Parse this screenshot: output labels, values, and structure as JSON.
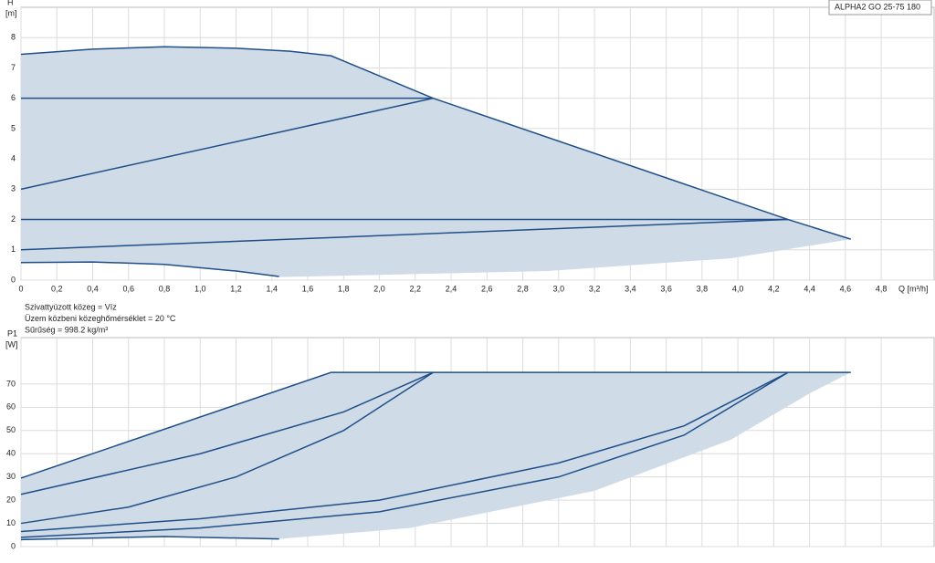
{
  "chart_data": [
    {
      "type": "line",
      "title": "ALPHA2 GO 25-75 180",
      "y_label": [
        "H",
        "[m]"
      ],
      "x_label": "Q [m³/h]",
      "xlim": [
        0,
        5.1
      ],
      "ylim": [
        0,
        9
      ],
      "xticks": [
        0,
        {
          "value": 0.2,
          "label": "0,2"
        },
        {
          "value": 0.4,
          "label": "0,4"
        },
        {
          "value": 0.6,
          "label": "0,6"
        },
        {
          "value": 0.8,
          "label": "0,8"
        },
        {
          "value": 1.0,
          "label": "1,0"
        },
        {
          "value": 1.2,
          "label": "1,2"
        },
        {
          "value": 1.4,
          "label": "1,4"
        },
        {
          "value": 1.6,
          "label": "1,6"
        },
        {
          "value": 1.8,
          "label": "1,8"
        },
        {
          "value": 2.0,
          "label": "2,0"
        },
        {
          "value": 2.2,
          "label": "2,2"
        },
        {
          "value": 2.4,
          "label": "2,4"
        },
        {
          "value": 2.6,
          "label": "2,6"
        },
        {
          "value": 2.8,
          "label": "2,8"
        },
        {
          "value": 3.0,
          "label": "3,0"
        },
        {
          "value": 3.2,
          "label": "3,2"
        },
        {
          "value": 3.4,
          "label": "3,4"
        },
        {
          "value": 3.6,
          "label": "3,6"
        },
        {
          "value": 3.8,
          "label": "3,8"
        },
        {
          "value": 4.0,
          "label": "4,0"
        },
        {
          "value": 4.2,
          "label": "4,2"
        },
        {
          "value": 4.4,
          "label": "4,4"
        },
        {
          "value": 4.6,
          "label": "4,6"
        },
        {
          "value": 4.8,
          "label": "4,8"
        }
      ],
      "yticks": [
        0,
        1,
        2,
        3,
        4,
        5,
        6,
        7,
        8
      ],
      "grid": true,
      "area": {
        "color": "#cfdce8",
        "x": [
          0,
          0.4,
          0.8,
          1.2,
          1.5,
          1.73,
          2.3,
          4.28,
          4.63,
          3.96,
          2.94,
          1.44,
          1.2,
          0.8,
          0.4,
          0
        ],
        "values": [
          7.45,
          7.62,
          7.7,
          7.65,
          7.55,
          7.4,
          6.0,
          2.0,
          1.35,
          0.72,
          0.3,
          0.1,
          0.3,
          0.52,
          0.6,
          0.58
        ]
      },
      "series": [
        {
          "color": "#1f4e88",
          "x": [
            0,
            0.4,
            0.8,
            1.2,
            1.5,
            1.73,
            2.3,
            4.28,
            4.63
          ],
          "values": [
            7.45,
            7.62,
            7.7,
            7.65,
            7.55,
            7.4,
            6.0,
            2.0,
            1.35
          ]
        },
        {
          "color": "#1f4e88",
          "x": [
            0,
            2.3
          ],
          "values": [
            6,
            6
          ]
        },
        {
          "color": "#1f4e88",
          "x": [
            0,
            2.3
          ],
          "values": [
            3,
            6
          ]
        },
        {
          "color": "#1f4e88",
          "x": [
            0,
            4.28
          ],
          "values": [
            2,
            2
          ]
        },
        {
          "color": "#1f4e88",
          "x": [
            0,
            4.28
          ],
          "values": [
            1,
            2
          ]
        },
        {
          "color": "#1f4e88",
          "x": [
            0,
            0.4,
            0.8,
            1.2,
            1.44
          ],
          "values": [
            0.58,
            0.6,
            0.52,
            0.3,
            0.12
          ]
        }
      ],
      "annotations": [
        "Szivattyúzott közeg = Víz",
        "Üzem közbeni közeghőmérséklet = 20 °C",
        "Sűrűség = 998.2 kg/m³"
      ]
    },
    {
      "type": "line",
      "y_label": [
        "P1",
        "[W]"
      ],
      "xlim": [
        0,
        5.1
      ],
      "ylim": [
        0,
        90
      ],
      "yticks": [
        0,
        10,
        20,
        30,
        40,
        50,
        60,
        70
      ],
      "grid": true,
      "area": {
        "color": "#cfdce8",
        "x": [
          0,
          1.73,
          4.63,
          4.4,
          3.96,
          3.2,
          2.17,
          1.44,
          0.8,
          0
        ],
        "values": [
          29.5,
          75,
          75,
          66,
          46,
          24,
          8,
          3.3,
          4.3,
          3
        ]
      },
      "series": [
        {
          "color": "#1f4e88",
          "x": [
            0,
            1.73,
            4.63
          ],
          "values": [
            29.5,
            75,
            75
          ]
        },
        {
          "color": "#1f4e88",
          "x": [
            0,
            1,
            1.8,
            2.3
          ],
          "values": [
            22.5,
            40,
            58,
            75
          ]
        },
        {
          "color": "#1f4e88",
          "x": [
            0,
            0.6,
            1.2,
            1.8,
            2.3
          ],
          "values": [
            10,
            17,
            30,
            50,
            75
          ]
        },
        {
          "color": "#1f4e88",
          "x": [
            0,
            1,
            2,
            3,
            3.7,
            4.28
          ],
          "values": [
            6.5,
            12,
            20,
            36,
            52,
            75
          ]
        },
        {
          "color": "#1f4e88",
          "x": [
            0,
            1,
            2,
            3,
            3.7,
            4.28
          ],
          "values": [
            4,
            8,
            15,
            30,
            48,
            75
          ]
        },
        {
          "color": "#1f4e88",
          "x": [
            0,
            0.8,
            1.44
          ],
          "values": [
            3,
            4.3,
            3.3
          ]
        }
      ]
    }
  ]
}
